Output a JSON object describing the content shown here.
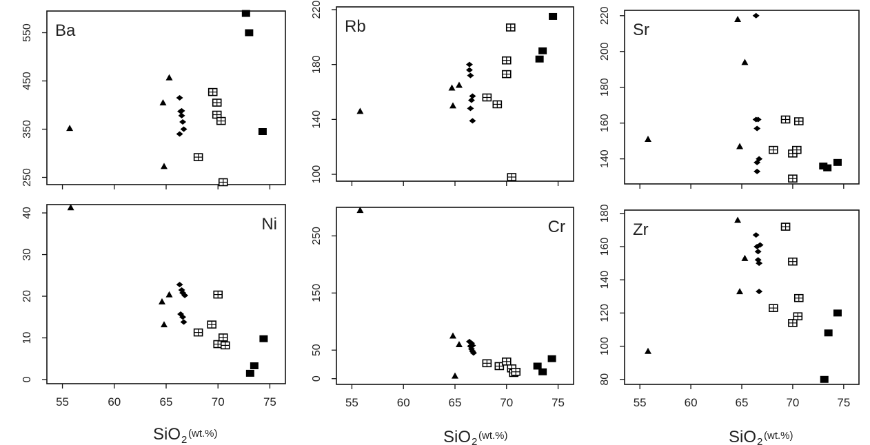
{
  "colors": {
    "axis": "#111111",
    "marker": "#000000",
    "grid": "#dddddd"
  },
  "xlabels": [
    {
      "main": "SiO",
      "sub": "2",
      "unit": "(wt.%)"
    },
    {
      "main": "SiO",
      "sub": "2",
      "unit": "(wt.%)"
    },
    {
      "main": "SiO",
      "sub": "2",
      "unit": "(wt.%)"
    }
  ],
  "chart_data": [
    {
      "type": "scatter",
      "title": "Ba",
      "title_position": "top-left",
      "xlim": [
        53.5,
        76.5
      ],
      "ylim": [
        235,
        595
      ],
      "xticks": [
        55,
        60,
        65,
        70,
        75
      ],
      "xtick_labels": false,
      "yticks": [
        250,
        350,
        450,
        550
      ],
      "series": [
        {
          "marker": "triangle",
          "x": [
            55.7,
            64.7,
            64.8,
            65.3
          ],
          "y": [
            352,
            405,
            273,
            457
          ]
        },
        {
          "marker": "diamond",
          "x": [
            66.3,
            66.4,
            66.5,
            66.6,
            66.7,
            66.3,
            66.5
          ],
          "y": [
            415,
            387,
            378,
            365,
            350,
            340,
            388
          ]
        },
        {
          "marker": "boxed-square",
          "x": [
            68.1,
            69.5,
            69.9,
            69.9,
            70.3,
            70.5
          ],
          "y": [
            292,
            427,
            405,
            380,
            367,
            240
          ]
        },
        {
          "marker": "filled-square",
          "x": [
            72.7,
            73.0,
            74.3
          ],
          "y": [
            590,
            550,
            345
          ]
        }
      ]
    },
    {
      "type": "scatter",
      "title": "Rb",
      "title_position": "top-left",
      "xlim": [
        53.5,
        76.5
      ],
      "ylim": [
        95,
        222
      ],
      "xticks": [
        55,
        60,
        65,
        70,
        75
      ],
      "xtick_labels": false,
      "yticks": [
        100,
        140,
        180,
        220
      ],
      "series": [
        {
          "marker": "triangle",
          "x": [
            55.8,
            64.7,
            64.8,
            65.4
          ],
          "y": [
            146,
            163,
            150,
            165
          ]
        },
        {
          "marker": "diamond",
          "x": [
            66.4,
            66.4,
            66.5,
            66.5,
            66.6,
            66.7,
            66.7
          ],
          "y": [
            180,
            176,
            172,
            148,
            154,
            157,
            139
          ]
        },
        {
          "marker": "boxed-square",
          "x": [
            68.1,
            69.1,
            70.0,
            70.0,
            70.4,
            70.5
          ],
          "y": [
            156,
            151,
            183,
            173,
            207,
            98
          ]
        },
        {
          "marker": "filled-square",
          "x": [
            73.2,
            73.5,
            74.5
          ],
          "y": [
            184,
            190,
            215
          ]
        }
      ]
    },
    {
      "type": "scatter",
      "title": "Sr",
      "title_position": "top-left",
      "xlim": [
        53.5,
        76.5
      ],
      "ylim": [
        126,
        223
      ],
      "xticks": [
        55,
        60,
        65,
        70,
        75
      ],
      "xtick_labels": false,
      "yticks": [
        140,
        160,
        180,
        200,
        220
      ],
      "series": [
        {
          "marker": "triangle",
          "x": [
            55.8,
            64.6,
            64.8,
            65.3
          ],
          "y": [
            151,
            218,
            147,
            194
          ]
        },
        {
          "marker": "diamond",
          "x": [
            66.4,
            66.5,
            66.4,
            66.5,
            66.7,
            66.6,
            66.5
          ],
          "y": [
            220,
            157,
            162,
            138,
            140,
            162,
            133
          ]
        },
        {
          "marker": "boxed-square",
          "x": [
            68.1,
            69.3,
            70.0,
            70.0,
            70.4,
            70.6
          ],
          "y": [
            145,
            162,
            143,
            129,
            145,
            161
          ]
        },
        {
          "marker": "filled-square",
          "x": [
            73.0,
            73.4,
            74.4
          ],
          "y": [
            136,
            135,
            138
          ]
        }
      ]
    },
    {
      "type": "scatter",
      "title": "Ni",
      "title_position": "top-right",
      "xlim": [
        53.5,
        76.5
      ],
      "ylim": [
        -1,
        42
      ],
      "xticks": [
        55,
        60,
        65,
        70,
        75
      ],
      "xtick_labels": true,
      "yticks": [
        0,
        10,
        20,
        30,
        40
      ],
      "series": [
        {
          "marker": "triangle",
          "x": [
            55.8,
            64.6,
            64.8,
            65.3
          ],
          "y": [
            41.3,
            18.7,
            13.2,
            20.4
          ]
        },
        {
          "marker": "diamond",
          "x": [
            66.3,
            66.5,
            66.6,
            66.8,
            66.4,
            66.6,
            66.7
          ],
          "y": [
            22.8,
            21.5,
            20.8,
            20.2,
            15.7,
            15.0,
            13.8
          ]
        },
        {
          "marker": "boxed-square",
          "x": [
            68.1,
            69.4,
            70.0,
            70.0,
            70.5,
            70.7
          ],
          "y": [
            11.3,
            13.2,
            20.4,
            8.5,
            10.1,
            8.2
          ]
        },
        {
          "marker": "filled-square",
          "x": [
            73.1,
            73.5,
            74.4
          ],
          "y": [
            1.5,
            3.3,
            9.8
          ]
        }
      ]
    },
    {
      "type": "scatter",
      "title": "Cr",
      "title_position": "top-right",
      "xlim": [
        53.5,
        76.5
      ],
      "ylim": [
        -10,
        300
      ],
      "xticks": [
        55,
        60,
        65,
        70,
        75
      ],
      "xtick_labels": true,
      "yticks": [
        0,
        50,
        150,
        250
      ],
      "series": [
        {
          "marker": "triangle",
          "x": [
            55.8,
            64.8,
            65.0,
            65.4
          ],
          "y": [
            295,
            75,
            5,
            60
          ]
        },
        {
          "marker": "diamond",
          "x": [
            66.4,
            66.5,
            66.6,
            66.7,
            66.6,
            66.7,
            66.8
          ],
          "y": [
            65,
            57,
            52,
            48,
            62,
            58,
            45
          ]
        },
        {
          "marker": "boxed-square",
          "x": [
            68.1,
            69.3,
            70.0,
            70.5,
            70.7,
            70.9
          ],
          "y": [
            27,
            22,
            30,
            18,
            10,
            12
          ]
        },
        {
          "marker": "filled-square",
          "x": [
            73.0,
            73.5,
            74.4
          ],
          "y": [
            22,
            12,
            35
          ]
        }
      ]
    },
    {
      "type": "scatter",
      "title": "Zr",
      "title_position": "top-left",
      "xlim": [
        53.5,
        76.5
      ],
      "ylim": [
        77,
        182
      ],
      "xticks": [
        55,
        60,
        65,
        70,
        75
      ],
      "xtick_labels": true,
      "yticks": [
        80,
        100,
        120,
        140,
        160,
        180
      ],
      "series": [
        {
          "marker": "triangle",
          "x": [
            55.8,
            64.6,
            64.8,
            65.3
          ],
          "y": [
            97,
            176,
            133,
            153
          ]
        },
        {
          "marker": "diamond",
          "x": [
            66.4,
            66.5,
            66.6,
            66.7,
            66.8,
            66.6,
            66.7
          ],
          "y": [
            167,
            160,
            157,
            150,
            161,
            152,
            133
          ]
        },
        {
          "marker": "boxed-square",
          "x": [
            68.1,
            69.3,
            70.0,
            70.0,
            70.5,
            70.6
          ],
          "y": [
            123,
            172,
            151,
            114,
            118,
            129
          ]
        },
        {
          "marker": "filled-square",
          "x": [
            73.1,
            73.5,
            74.4
          ],
          "y": [
            80,
            108,
            120
          ]
        }
      ]
    }
  ]
}
